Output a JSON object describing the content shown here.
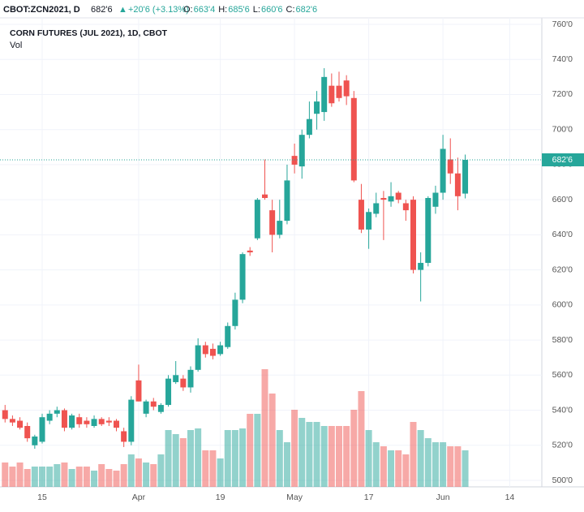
{
  "header": {
    "symbol": "CBOT:ZCN2021, D",
    "change": "+20'6 (+3.13%)",
    "ohlc": [
      {
        "label": "O:",
        "value": "663'4"
      },
      {
        "label": "H:",
        "value": "685'6"
      },
      {
        "label": "L:",
        "value": "660'6"
      },
      {
        "label": "C:",
        "value": "682'6"
      }
    ]
  },
  "chart_data": {
    "type": "candlestick",
    "title": "CORN FUTURES (JUL 2021), 1D, CBOT",
    "volume_label": "Vol",
    "up_color": "#26a69a",
    "down_color": "#ef5350",
    "grid": true,
    "last_price": {
      "value": 682.75,
      "label": "682'6"
    },
    "ylim": [
      500,
      760
    ],
    "yticks": [
      {
        "value": 500,
        "label": "500'0"
      },
      {
        "value": 520,
        "label": "520'0"
      },
      {
        "value": 540,
        "label": "540'0"
      },
      {
        "value": 560,
        "label": "560'0"
      },
      {
        "value": 580,
        "label": "580'0"
      },
      {
        "value": 600,
        "label": "600'0"
      },
      {
        "value": 620,
        "label": "620'0"
      },
      {
        "value": 640,
        "label": "640'0"
      },
      {
        "value": 660,
        "label": "660'0"
      },
      {
        "value": 680,
        "label": "680'0"
      },
      {
        "value": 700,
        "label": "700'0"
      },
      {
        "value": 720,
        "label": "720'0"
      },
      {
        "value": 740,
        "label": "740'0"
      },
      {
        "value": 760,
        "label": "760'0"
      }
    ],
    "categories": [
      null,
      null,
      null,
      null,
      null,
      "15",
      null,
      null,
      null,
      null,
      null,
      null,
      null,
      null,
      null,
      null,
      null,
      null,
      "Apr",
      null,
      null,
      null,
      null,
      null,
      null,
      null,
      null,
      null,
      null,
      "19",
      null,
      null,
      null,
      null,
      null,
      null,
      null,
      null,
      null,
      "May",
      null,
      null,
      null,
      null,
      null,
      null,
      null,
      null,
      null,
      "17",
      null,
      null,
      null,
      null,
      null,
      null,
      null,
      null,
      null,
      "Jun",
      null,
      null,
      null,
      null,
      null,
      null,
      null,
      null,
      "14",
      null,
      null,
      null,
      null
    ],
    "open": [
      540,
      535,
      534,
      531,
      520,
      522,
      534,
      538,
      540,
      530,
      536,
      534,
      531,
      535,
      534,
      534,
      528,
      522,
      557,
      538,
      545,
      539,
      543,
      556,
      558,
      553,
      563,
      577,
      575,
      572,
      576,
      588,
      603,
      631,
      638,
      663,
      654,
      640,
      648,
      685,
      679,
      697,
      709,
      710,
      725,
      725,
      728,
      718,
      660,
      643,
      652,
      661,
      659,
      664,
      658,
      660,
      620,
      624,
      656,
      664,
      683,
      675,
      663.5,
      null,
      null,
      null,
      null,
      null,
      null,
      null,
      null,
      null,
      null
    ],
    "high": [
      543,
      537,
      536,
      533,
      526,
      538,
      540,
      542,
      541,
      538,
      538,
      536,
      537,
      536,
      536,
      535,
      530,
      548,
      566,
      546,
      547,
      544,
      560,
      568,
      560,
      565,
      581,
      579,
      578,
      579,
      590,
      607,
      630,
      633,
      661,
      683,
      660,
      660,
      680,
      692,
      700,
      716,
      722,
      735,
      732,
      733,
      731,
      722,
      669,
      655,
      664,
      665,
      670,
      665,
      660,
      662,
      630,
      662,
      668,
      697,
      695,
      684,
      685.75,
      null,
      null,
      null,
      null,
      null,
      null,
      null,
      null,
      null,
      null
    ],
    "low": [
      533,
      531,
      529,
      522,
      518,
      521,
      532,
      536,
      528,
      529,
      530,
      530,
      530,
      531,
      531,
      528,
      519,
      520,
      545,
      536,
      540,
      538,
      542,
      555,
      551,
      550,
      562,
      570,
      569,
      571,
      575,
      586,
      601,
      628,
      637,
      660,
      630,
      638,
      646,
      675,
      672,
      695,
      700,
      705,
      713,
      716,
      714,
      670,
      641,
      632,
      650,
      637,
      656,
      658,
      648,
      618,
      602,
      622,
      652,
      660,
      669,
      654,
      660.75,
      null,
      null,
      null,
      null,
      null,
      null,
      null,
      null,
      null,
      null
    ],
    "close": [
      535,
      533,
      530,
      524,
      525,
      536,
      538,
      540,
      530,
      537,
      532,
      532,
      535,
      532,
      533,
      530,
      522,
      546,
      545,
      545,
      542,
      543,
      558,
      560,
      553,
      563,
      577,
      572,
      571,
      577,
      588,
      603,
      629,
      630,
      660,
      661,
      640,
      648,
      671,
      680,
      697,
      706,
      716,
      730,
      715,
      718,
      719,
      671,
      643,
      653,
      658,
      660,
      662,
      660,
      654,
      620,
      624,
      661,
      664,
      689,
      675,
      662,
      682.75,
      null,
      null,
      null,
      null,
      null,
      null,
      null,
      null,
      null,
      null
    ],
    "volume": [
      30,
      25,
      30,
      22,
      25,
      25,
      25,
      28,
      30,
      22,
      25,
      25,
      20,
      28,
      22,
      20,
      28,
      40,
      35,
      30,
      28,
      40,
      70,
      65,
      60,
      70,
      72,
      45,
      45,
      35,
      70,
      70,
      72,
      90,
      90,
      145,
      115,
      70,
      55,
      95,
      85,
      80,
      80,
      75,
      75,
      75,
      75,
      95,
      118,
      70,
      55,
      50,
      45,
      45,
      40,
      80,
      70,
      60,
      55,
      55,
      50,
      50,
      45,
      null,
      null,
      null,
      null,
      null,
      null,
      null,
      null,
      null,
      null
    ]
  }
}
